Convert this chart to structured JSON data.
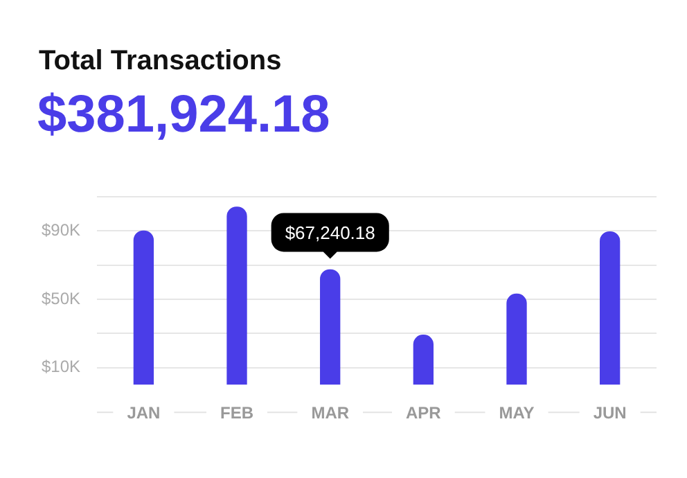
{
  "chart_data": {
    "type": "bar",
    "title": "Total Transactions",
    "subtitle": "$381,924.18",
    "categories": [
      "JAN",
      "FEB",
      "MAR",
      "APR",
      "MAY",
      "JUN"
    ],
    "values": [
      90000,
      104000,
      67240.18,
      29000,
      53000,
      89500
    ],
    "color": "#4a3de8",
    "ylim": [
      0,
      110000
    ],
    "yticks": [
      {
        "value": 10000,
        "label": "$10K"
      },
      {
        "value": 30000,
        "label": null
      },
      {
        "value": 50000,
        "label": "$50K"
      },
      {
        "value": 70000,
        "label": null
      },
      {
        "value": 90000,
        "label": "$90K"
      },
      {
        "value": 110000,
        "label": null
      }
    ],
    "grid": "y",
    "legend": false,
    "annotations": [
      {
        "text": "$67,240.18",
        "x": "MAR",
        "y": 67240.18
      }
    ]
  }
}
